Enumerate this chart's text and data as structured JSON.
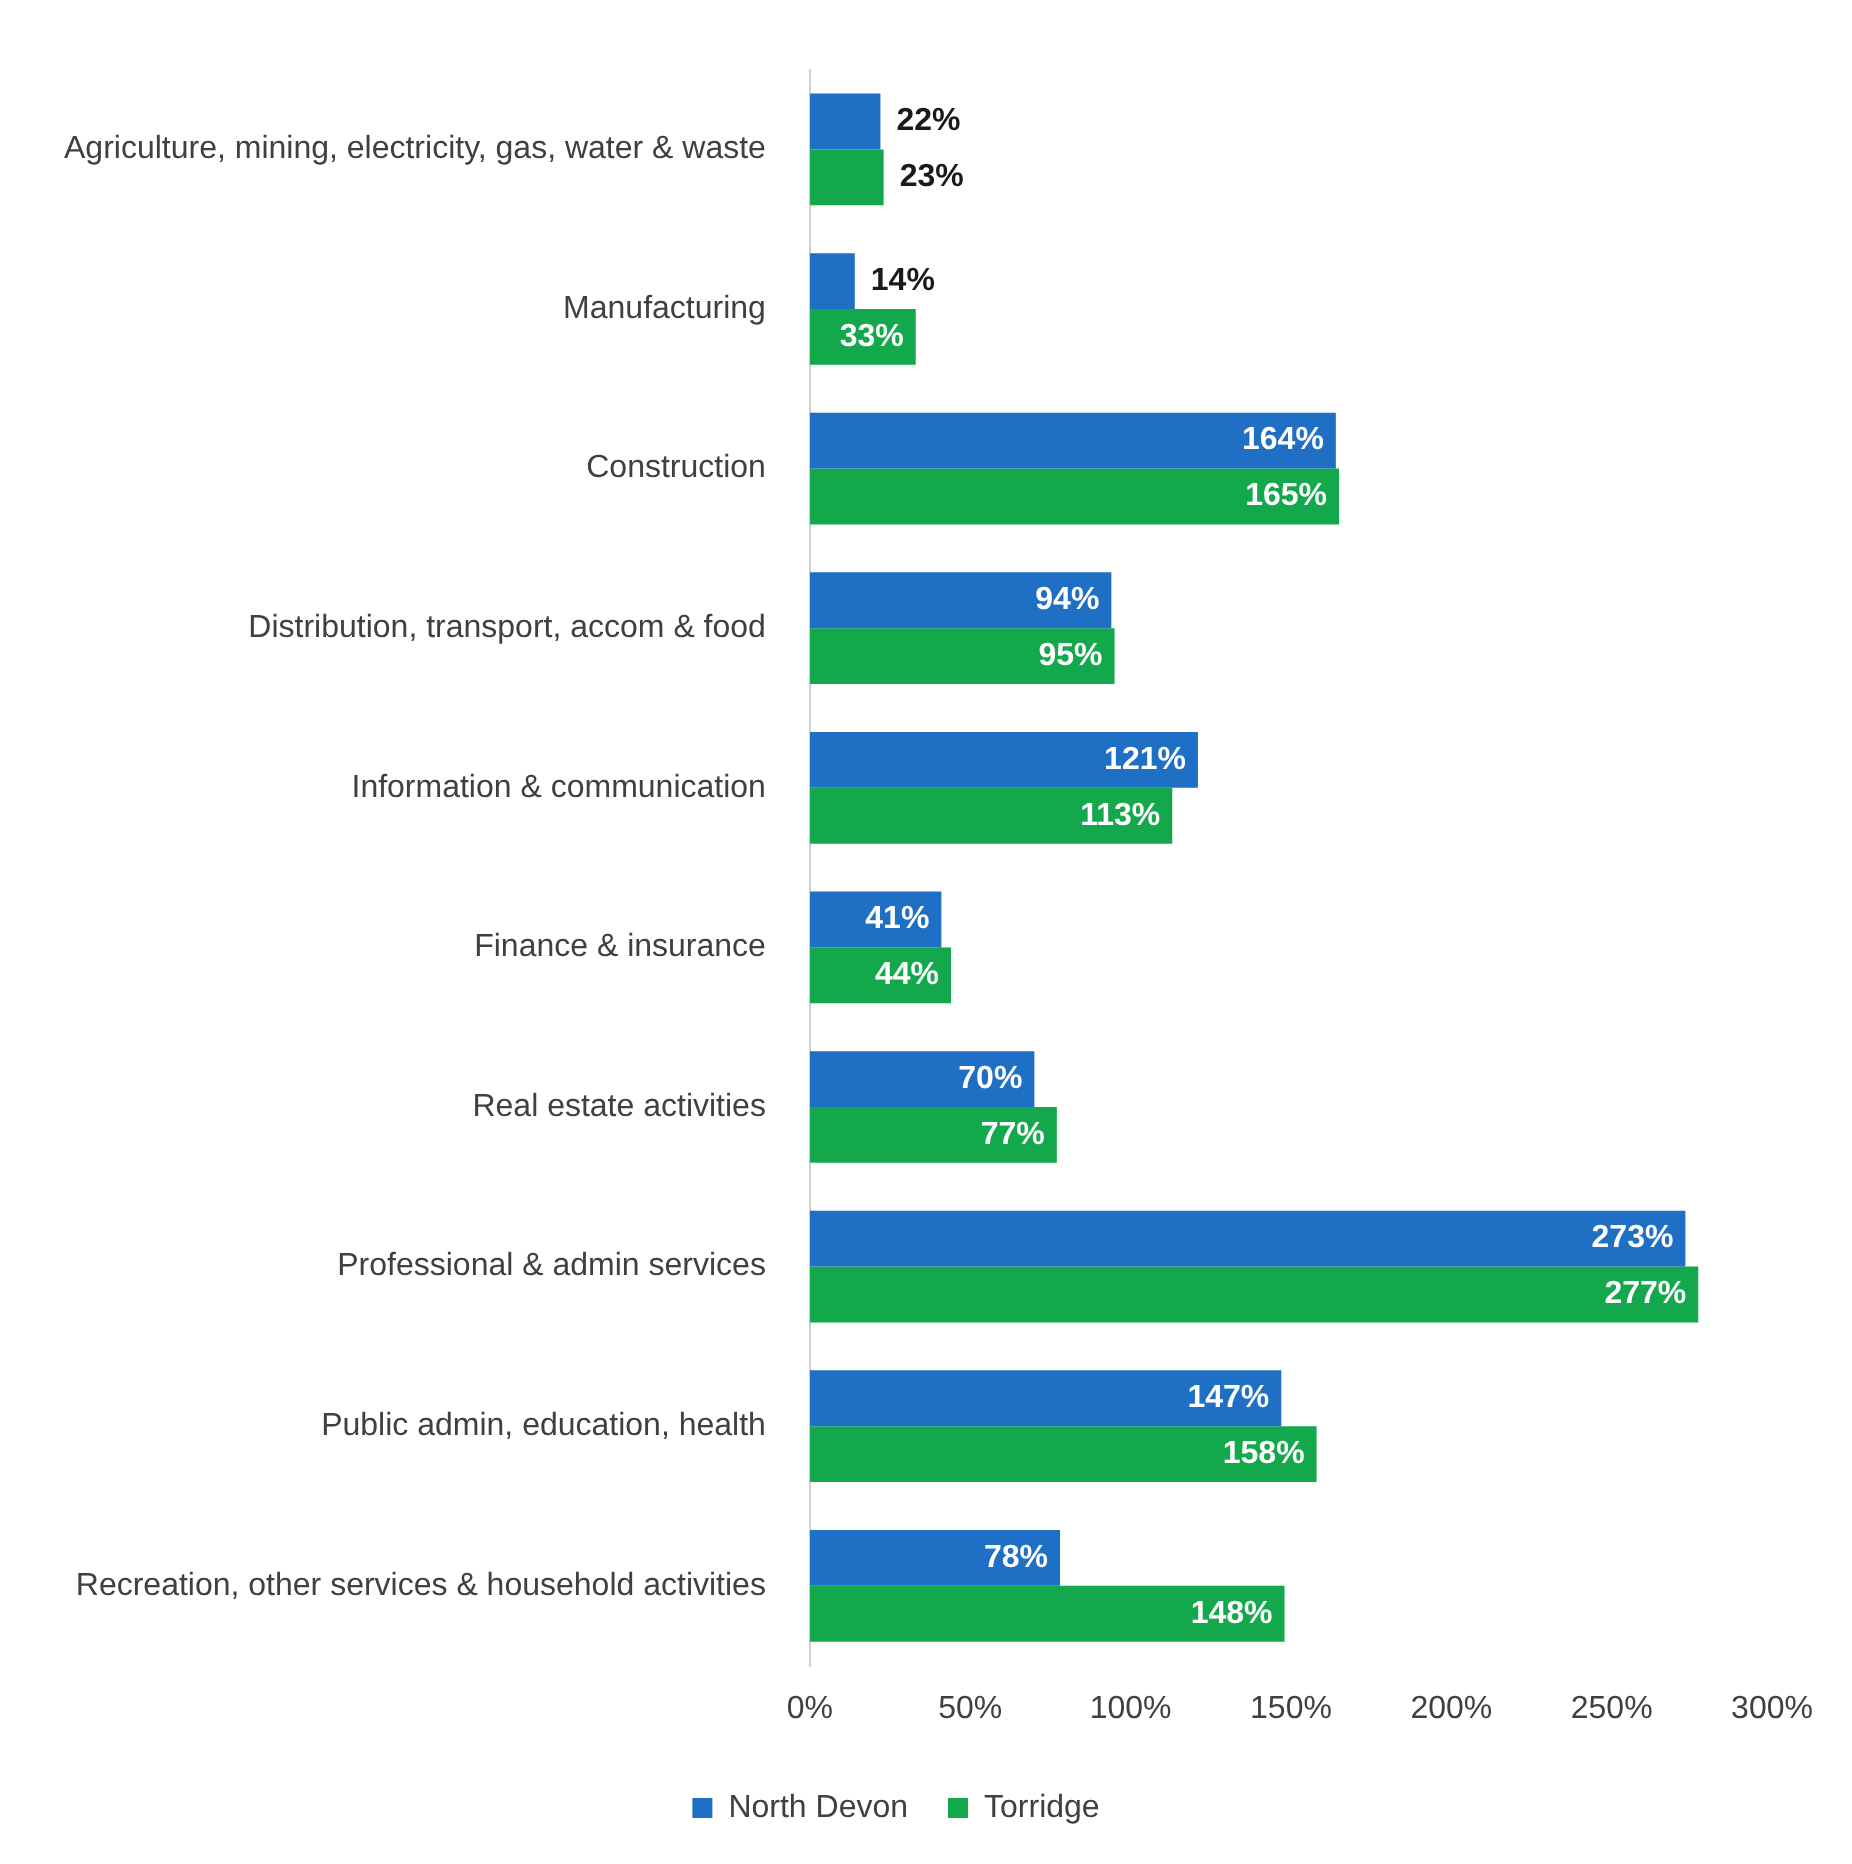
{
  "chart_data": {
    "type": "bar",
    "orientation": "horizontal",
    "categories": [
      "Agriculture, mining, electricity, gas, water & waste",
      "Manufacturing",
      "Construction",
      "Distribution, transport, accom & food",
      "Information & communication",
      "Finance & insurance",
      "Real estate activities",
      "Professional & admin services",
      "Public admin, education, health",
      "Recreation, other services & household activities"
    ],
    "series": [
      {
        "name": "North Devon",
        "color": "#1f6fc4",
        "values": [
          22,
          14,
          164,
          94,
          121,
          41,
          70,
          273,
          147,
          78
        ],
        "value_labels": [
          "22%",
          "14%",
          "164%",
          "94%",
          "121%",
          "41%",
          "70%",
          "273%",
          "147%",
          "78%"
        ]
      },
      {
        "name": "Torridge",
        "color": "#14a84c",
        "values": [
          23,
          33,
          165,
          95,
          113,
          44,
          77,
          277,
          158,
          148
        ],
        "value_labels": [
          "23%",
          "33%",
          "165%",
          "95%",
          "113%",
          "44%",
          "77%",
          "277%",
          "158%",
          "148%"
        ]
      }
    ],
    "xlim": [
      0,
      300
    ],
    "xticks": [
      {
        "value": 0,
        "label": "0%"
      },
      {
        "value": 50,
        "label": "50%"
      },
      {
        "value": 100,
        "label": "100%"
      },
      {
        "value": 150,
        "label": "150%"
      },
      {
        "value": 200,
        "label": "200%"
      },
      {
        "value": 250,
        "label": "250%"
      },
      {
        "value": 300,
        "label": "300%"
      }
    ],
    "grid": false,
    "legend": "bottom"
  }
}
